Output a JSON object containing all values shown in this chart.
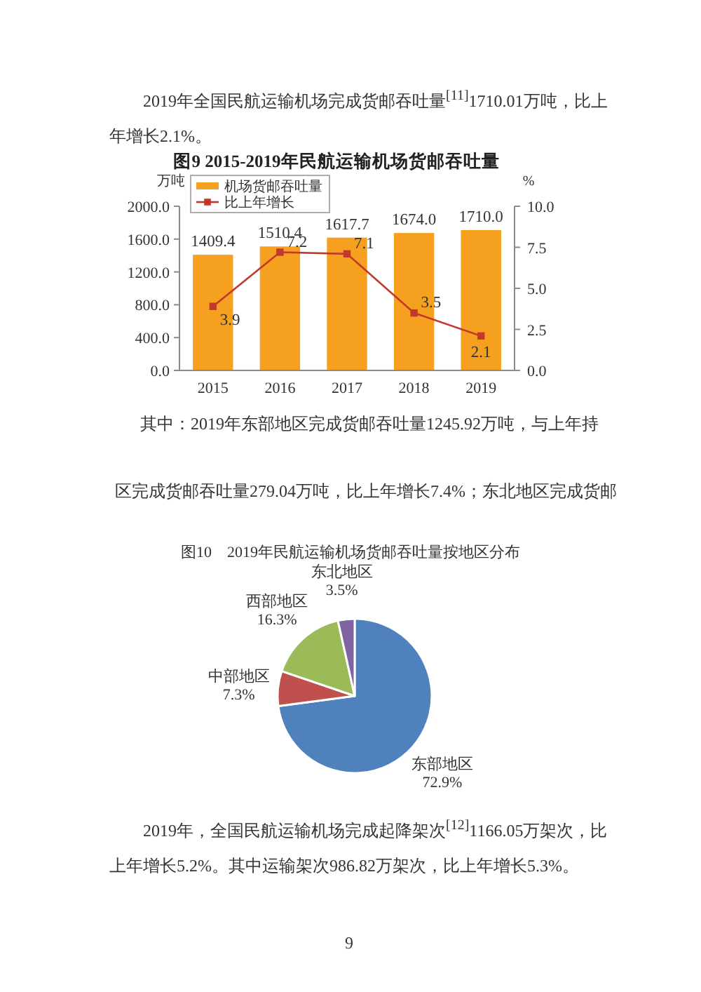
{
  "chart_data": [
    {
      "type": "bar",
      "title": "图9 2015-2019年民航运输机场货邮吞吐量",
      "ylabel": "万吨",
      "y2label": "%",
      "categories": [
        "2015",
        "2016",
        "2017",
        "2018",
        "2019"
      ],
      "series": [
        {
          "name": "机场货邮吞吐量",
          "type": "bar",
          "color": "#f5a01e",
          "values": [
            1409.4,
            1510.4,
            1617.7,
            1674.0,
            1710.0
          ],
          "value_labels": [
            "1409.4",
            "1510.4",
            "1617.7",
            "1674.0",
            "1710.0"
          ]
        },
        {
          "name": "比上年增长",
          "type": "line",
          "axis": "y2",
          "color": "#c0392b",
          "marker": "square",
          "values": [
            3.9,
            7.2,
            7.1,
            3.5,
            2.1
          ],
          "value_labels": [
            "3.9",
            "7.2",
            "7.1",
            "3.5",
            "2.1"
          ]
        }
      ],
      "ylim": [
        0,
        2000
      ],
      "yticks": [
        {
          "value": 0,
          "label": "0.0"
        },
        {
          "value": 400,
          "label": "400.0"
        },
        {
          "value": 800,
          "label": "800.0"
        },
        {
          "value": 1200,
          "label": "1200.0"
        },
        {
          "value": 1600,
          "label": "1600.0"
        },
        {
          "value": 2000,
          "label": "2000.0"
        }
      ],
      "y2lim": [
        0,
        10
      ],
      "y2ticks": [
        {
          "value": 0,
          "label": "0.0"
        },
        2.5,
        {
          "value": 5,
          "label": "5.0"
        },
        7.5,
        {
          "value": 10,
          "label": "10.0"
        }
      ],
      "legend": "top left",
      "annotations": [
        "2019年全国民航运输机场完成货邮吞吐量$^{[11]}$1710.01万吨，比上年增长2.1%。"
      ]
    },
    {
      "type": "pie",
      "title": "图10　2019年民航运输机场货邮吞吐量按地区分布",
      "categories": [
        "东部地区",
        "中部地区",
        "西部地区",
        "东北地区"
      ],
      "values": [
        72.9,
        7.3,
        16.3,
        3.5
      ],
      "colors": [
        "#4f81bd",
        "#c0504d",
        "#9bbb59",
        "#8064a2"
      ],
      "value_labels": [
        "72.9%",
        "7.3%",
        "16.3%",
        "3.5%"
      ],
      "annotations": [
        "其中：2019年东部地区完成货邮吞吐量1245.92万吨，与上年持",
        "区完成货邮吞吐量279.04万吨，比上年增长7.4%；东北地区完成货邮",
        "2019年，全国民航运输机场完成起降架次$^{[12]}$1166.05万架次，比上年增长5.2%。其中运输架次986.82万架次，比上年增长5.3%。",
        "9"
      ]
    }
  ]
}
